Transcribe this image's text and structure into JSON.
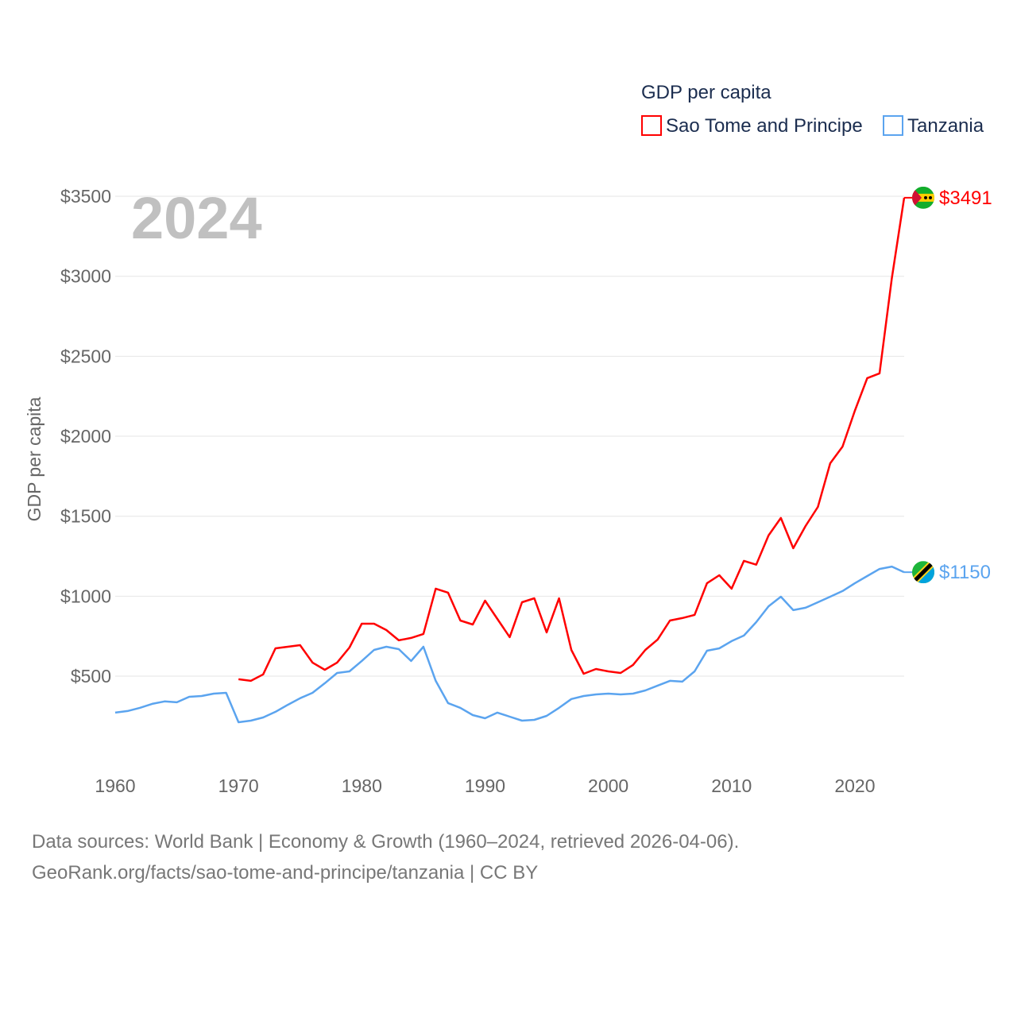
{
  "chart_data": {
    "type": "line",
    "title": "GDP per capita",
    "xlabel": "",
    "ylabel": "GDP per capita",
    "year_label": "2024",
    "xlim": [
      1960,
      2024
    ],
    "ylim": [
      0,
      3500
    ],
    "x_ticks": [
      1960,
      1970,
      1980,
      1990,
      2000,
      2010,
      2020
    ],
    "y_ticks": [
      500,
      1000,
      1500,
      2000,
      2500,
      3000,
      3500
    ],
    "y_tick_labels": [
      "$500",
      "$1000",
      "$1500",
      "$2000",
      "$2500",
      "$3000",
      "$3500"
    ],
    "grid": true,
    "legend_position": "top-right",
    "series": [
      {
        "name": "Sao Tome and Principe",
        "color": "#ff0000",
        "end_label": "$3491",
        "flag": "sao-tome-and-principe-flag",
        "start_year": 1970,
        "values": [
          481,
          471,
          511,
          674,
          684,
          694,
          585,
          540,
          585,
          679,
          828,
          828,
          788,
          724,
          739,
          764,
          1047,
          1022,
          848,
          823,
          972,
          858,
          744,
          962,
          987,
          774,
          987,
          664,
          515,
          545,
          530,
          520,
          570,
          664,
          729,
          848,
          863,
          883,
          1081,
          1131,
          1047,
          1221,
          1197,
          1380,
          1489,
          1300,
          1439,
          1558,
          1831,
          1935,
          2159,
          2363,
          2393,
          2989,
          3491
        ]
      },
      {
        "name": "Tanzania",
        "color": "#5ba4ef",
        "end_label": "$1150",
        "flag": "tanzania-flag",
        "start_year": 1960,
        "values": [
          272,
          282,
          302,
          327,
          342,
          337,
          371,
          376,
          391,
          396,
          212,
          222,
          242,
          277,
          321,
          362,
          396,
          456,
          520,
          530,
          595,
          664,
          684,
          669,
          595,
          684,
          471,
          332,
          302,
          257,
          237,
          272,
          247,
          222,
          227,
          252,
          302,
          357,
          376,
          386,
          391,
          386,
          391,
          411,
          441,
          471,
          466,
          530,
          659,
          674,
          719,
          754,
          838,
          937,
          997,
          913,
          928,
          962,
          997,
          1032,
          1081,
          1126,
          1170,
          1185,
          1150
        ]
      }
    ]
  },
  "footer": {
    "line1": "Data sources: World Bank | Economy & Growth (1960–2024, retrieved 2026-04-06).",
    "line2": "GeoRank.org/facts/sao-tome-and-principe/tanzania | CC BY"
  }
}
